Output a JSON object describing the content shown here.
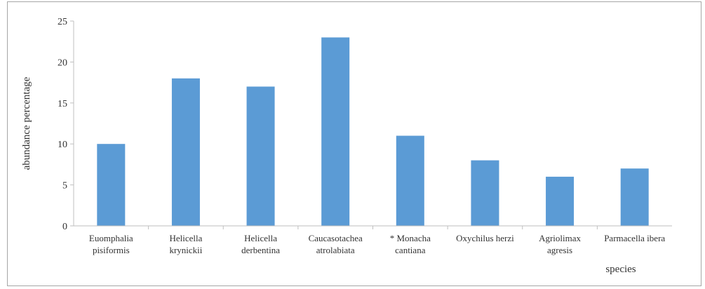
{
  "chart_data": {
    "type": "bar",
    "title": "",
    "xlabel": "species",
    "ylabel": "abundance percentage",
    "ylim": [
      0,
      25
    ],
    "yticks": [
      0,
      5,
      10,
      15,
      20,
      25
    ],
    "grid": false,
    "legend": "none",
    "bar_color": "#5b9bd5",
    "categories": [
      [
        "Euomphalia",
        "pisiformis"
      ],
      [
        "Helicella",
        "krynickii"
      ],
      [
        "Helicella",
        "derbentina"
      ],
      [
        "Caucasotachea",
        "atrolabiata"
      ],
      [
        "* Monacha",
        "cantiana"
      ],
      [
        "Oxychilus herzi"
      ],
      [
        "Agriolimax",
        "agresis"
      ],
      [
        "Parmacella ibera"
      ]
    ],
    "values": [
      10,
      18,
      17,
      23,
      11,
      8,
      6,
      7
    ]
  }
}
